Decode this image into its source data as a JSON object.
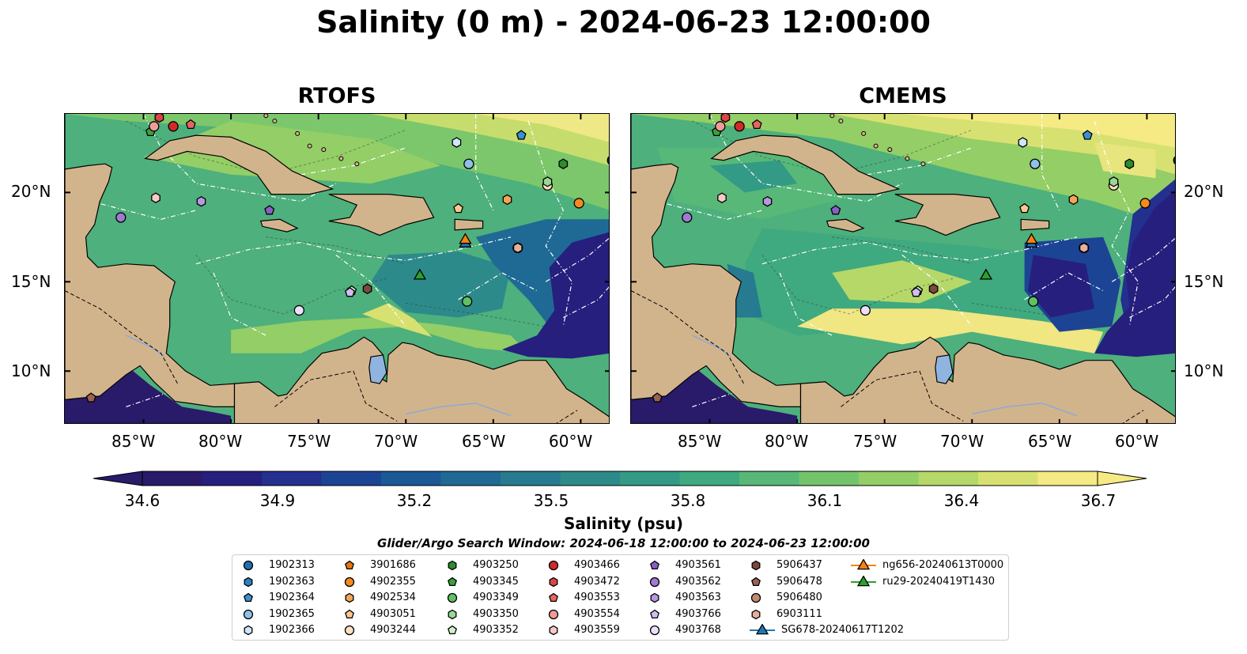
{
  "title": "Salinity (0 m) - 2024-06-23 12:00:00",
  "panels": [
    {
      "title": "RTOFS",
      "variant": "rtofs"
    },
    {
      "title": "CMEMS",
      "variant": "cmems"
    }
  ],
  "lat_ticks": [
    "20°N",
    "15°N",
    "10°N"
  ],
  "lon_ticks": [
    "85°W",
    "80°W",
    "75°W",
    "70°W",
    "65°W",
    "60°W"
  ],
  "colorbar": {
    "label": "Salinity (psu)",
    "ticks": [
      "34.6",
      "34.9",
      "35.2",
      "35.5",
      "35.8",
      "36.1",
      "36.4",
      "36.7"
    ],
    "colors": [
      "#2a1a6a",
      "#261f7e",
      "#23308e",
      "#1c4495",
      "#1b5896",
      "#1f6a94",
      "#267b90",
      "#2d8a8b",
      "#339a85",
      "#3fa97f",
      "#57b878",
      "#74c46c",
      "#93ce66",
      "#b5d869",
      "#d7e171",
      "#f5ea84"
    ]
  },
  "search_window": "Glider/Argo Search Window: 2024-06-18 12:00:00 to 2024-06-23 12:00:00",
  "legend": [
    {
      "label": "1902313",
      "shape": "circle",
      "color": "#1f6fb4"
    },
    {
      "label": "1902363",
      "shape": "hexagon",
      "color": "#2f80c0"
    },
    {
      "label": "1902364",
      "shape": "pentagon",
      "color": "#3b8fd0"
    },
    {
      "label": "1902365",
      "shape": "circle",
      "color": "#8ec0ea"
    },
    {
      "label": "1902366",
      "shape": "hexagon",
      "color": "#cfe6fa"
    },
    {
      "label": "3901686",
      "shape": "pentagon",
      "color": "#e8740c"
    },
    {
      "label": "4902355",
      "shape": "circle",
      "color": "#f5891e"
    },
    {
      "label": "4902534",
      "shape": "hexagon",
      "color": "#f7a456"
    },
    {
      "label": "4903051",
      "shape": "pentagon",
      "color": "#fbc78e"
    },
    {
      "label": "4903244",
      "shape": "circle",
      "color": "#fde0c0"
    },
    {
      "label": "4903250",
      "shape": "hexagon",
      "color": "#2e8b2e"
    },
    {
      "label": "4903345",
      "shape": "pentagon",
      "color": "#3aa23a"
    },
    {
      "label": "4903349",
      "shape": "circle",
      "color": "#62c062"
    },
    {
      "label": "4903350",
      "shape": "hexagon",
      "color": "#98d897"
    },
    {
      "label": "4903352",
      "shape": "pentagon",
      "color": "#d0f0c8"
    },
    {
      "label": "4903466",
      "shape": "circle",
      "color": "#d12a2a"
    },
    {
      "label": "4903472",
      "shape": "hexagon",
      "color": "#dc4545"
    },
    {
      "label": "4903553",
      "shape": "pentagon",
      "color": "#e86464"
    },
    {
      "label": "4903554",
      "shape": "circle",
      "color": "#f29a9a"
    },
    {
      "label": "4903559",
      "shape": "hexagon",
      "color": "#f9c9c6"
    },
    {
      "label": "4903561",
      "shape": "pentagon",
      "color": "#8a5fc4"
    },
    {
      "label": "4903562",
      "shape": "circle",
      "color": "#a07ad0"
    },
    {
      "label": "4903563",
      "shape": "hexagon",
      "color": "#b797dd"
    },
    {
      "label": "4903766",
      "shape": "pentagon",
      "color": "#d2bdf0"
    },
    {
      "label": "4903768",
      "shape": "circle",
      "color": "#ecdffa"
    },
    {
      "label": "5906437",
      "shape": "hexagon",
      "color": "#7a4a3a"
    },
    {
      "label": "5906478",
      "shape": "pentagon",
      "color": "#9a6250"
    },
    {
      "label": "5906480",
      "shape": "circle",
      "color": "#c08a74"
    },
    {
      "label": "6903111",
      "shape": "hexagon",
      "color": "#e5b0a0"
    },
    {
      "label": "SG678-20240617T1202",
      "shape": "triangle",
      "color": "#1f77b4"
    },
    {
      "label": "ng656-20240613T0000",
      "shape": "triangle",
      "color": "#ff7f0e"
    },
    {
      "label": "ru29-20240419T1430",
      "shape": "triangle",
      "color": "#2ca02c"
    }
  ],
  "observations": [
    {
      "id": "1902313",
      "lon": -58.2,
      "lat": 21.8
    },
    {
      "id": "1902363",
      "lon": -58.2,
      "lat": 21.8
    },
    {
      "id": "1902364",
      "lon": -63.4,
      "lat": 23.2
    },
    {
      "id": "1902365",
      "lon": -66.4,
      "lat": 21.6
    },
    {
      "id": "1902366",
      "lon": -67.1,
      "lat": 22.8
    },
    {
      "id": "3901686",
      "lon": -58.1,
      "lat": 21.9
    },
    {
      "id": "4902355",
      "lon": -60.1,
      "lat": 19.4
    },
    {
      "id": "4902534",
      "lon": -64.2,
      "lat": 19.6
    },
    {
      "id": "4903051",
      "lon": -67.0,
      "lat": 19.1
    },
    {
      "id": "4903244",
      "lon": -61.9,
      "lat": 20.4
    },
    {
      "id": "4903250",
      "lon": -61.0,
      "lat": 21.6
    },
    {
      "id": "4903345",
      "lon": -84.6,
      "lat": 23.4
    },
    {
      "id": "4903349",
      "lon": -66.5,
      "lat": 13.9
    },
    {
      "id": "4903350",
      "lon": -61.9,
      "lat": 20.6
    },
    {
      "id": "4903352",
      "lon": -73.1,
      "lat": 14.5
    },
    {
      "id": "4903466",
      "lon": -83.3,
      "lat": 23.7
    },
    {
      "id": "4903472",
      "lon": -84.1,
      "lat": 24.2
    },
    {
      "id": "4903553",
      "lon": -82.3,
      "lat": 23.8
    },
    {
      "id": "4903554",
      "lon": -84.4,
      "lat": 23.7
    },
    {
      "id": "4903559",
      "lon": -84.3,
      "lat": 19.7
    },
    {
      "id": "4903561",
      "lon": -77.8,
      "lat": 19.0
    },
    {
      "id": "4903562",
      "lon": -86.3,
      "lat": 18.6
    },
    {
      "id": "4903563",
      "lon": -81.7,
      "lat": 19.5
    },
    {
      "id": "4903766",
      "lon": -73.2,
      "lat": 14.4
    },
    {
      "id": "4903768",
      "lon": -76.1,
      "lat": 13.4
    },
    {
      "id": "5906437",
      "lon": -72.2,
      "lat": 14.6
    },
    {
      "id": "5906478",
      "lon": -88.0,
      "lat": 8.5
    },
    {
      "id": "5906480",
      "lon": -63.6,
      "lat": 16.9
    },
    {
      "id": "6903111",
      "lon": -63.6,
      "lat": 16.9
    },
    {
      "id": "SG678-20240617T1202",
      "lon": -66.6,
      "lat": 17.2
    },
    {
      "id": "ng656-20240613T0000",
      "lon": -66.6,
      "lat": 17.4
    },
    {
      "id": "ru29-20240419T1430",
      "lon": -69.2,
      "lat": 15.4
    }
  ]
}
